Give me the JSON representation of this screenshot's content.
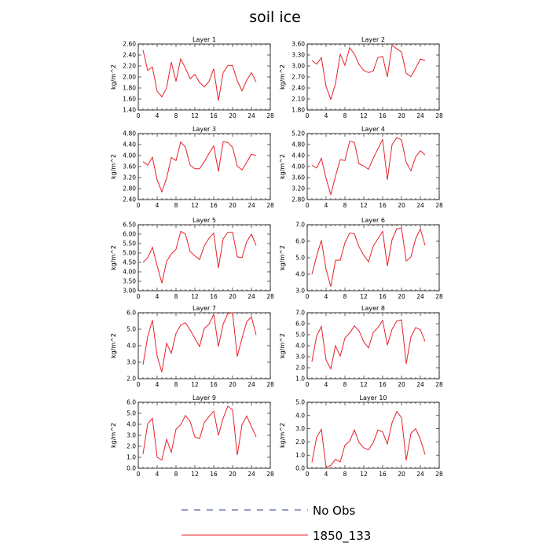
{
  "title": "soil ice",
  "legend": [
    {
      "label": "No Obs",
      "color": "#2b3b8f",
      "style": "dashed"
    },
    {
      "label": "1850_133",
      "color": "#e8202a",
      "style": "solid"
    }
  ],
  "chart_data": [
    {
      "type": "line",
      "title": "Layer 1",
      "ylabel": "kg/m^2",
      "xlim": [
        0,
        28
      ],
      "xticks": [
        0,
        4,
        8,
        12,
        16,
        20,
        24,
        28
      ],
      "ylim": [
        1.4,
        2.6
      ],
      "yticks": [
        "1.40",
        "1.60",
        "1.80",
        "2.00",
        "2.20",
        "2.40",
        "2.60"
      ],
      "series": [
        {
          "x": [
            1,
            2,
            3,
            4,
            5,
            6,
            7,
            8,
            9,
            10,
            11,
            12,
            13,
            14,
            15,
            16,
            17,
            18,
            19,
            20,
            21,
            22,
            23,
            24,
            25
          ],
          "y": [
            2.49,
            2.12,
            2.18,
            1.74,
            1.64,
            1.8,
            2.27,
            1.92,
            2.33,
            2.16,
            1.97,
            2.05,
            1.9,
            1.82,
            1.92,
            2.15,
            1.57,
            2.08,
            2.21,
            2.21,
            1.93,
            1.75,
            1.94,
            2.08,
            1.91
          ]
        }
      ]
    },
    {
      "type": "line",
      "title": "Layer 2",
      "ylabel": "kg/m^2",
      "xlim": [
        0,
        28
      ],
      "xticks": [
        0,
        4,
        8,
        12,
        16,
        20,
        24,
        28
      ],
      "ylim": [
        1.8,
        3.6
      ],
      "yticks": [
        "1.80",
        "2.10",
        "2.40",
        "2.70",
        "3.00",
        "3.30",
        "3.60"
      ],
      "series": [
        {
          "x": [
            1,
            2,
            3,
            4,
            5,
            6,
            7,
            8,
            9,
            10,
            11,
            12,
            13,
            14,
            15,
            16,
            17,
            18,
            19,
            20,
            21,
            22,
            23,
            24,
            25
          ],
          "y": [
            3.15,
            3.05,
            3.23,
            2.44,
            2.09,
            2.52,
            3.32,
            3.02,
            3.5,
            3.33,
            3.04,
            2.88,
            2.82,
            2.86,
            3.23,
            3.26,
            2.7,
            3.57,
            3.47,
            3.38,
            2.8,
            2.71,
            2.94,
            3.19,
            3.15
          ]
        }
      ]
    },
    {
      "type": "line",
      "title": "Layer 3",
      "ylabel": "kg/m^2",
      "xlim": [
        0,
        28
      ],
      "xticks": [
        0,
        4,
        8,
        12,
        16,
        20,
        24,
        28
      ],
      "ylim": [
        2.4,
        4.8
      ],
      "yticks": [
        "2.40",
        "2.80",
        "3.20",
        "3.60",
        "4.00",
        "4.40",
        "4.80"
      ],
      "series": [
        {
          "x": [
            1,
            2,
            3,
            4,
            5,
            6,
            7,
            8,
            9,
            10,
            11,
            12,
            13,
            14,
            15,
            16,
            17,
            18,
            19,
            20,
            21,
            22,
            23,
            24,
            25
          ],
          "y": [
            3.78,
            3.65,
            3.94,
            3.12,
            2.68,
            3.17,
            3.93,
            3.82,
            4.5,
            4.3,
            3.65,
            3.52,
            3.52,
            3.78,
            4.08,
            4.35,
            3.42,
            4.5,
            4.48,
            4.3,
            3.62,
            3.48,
            3.75,
            4.05,
            4.0
          ]
        }
      ]
    },
    {
      "type": "line",
      "title": "Layer 4",
      "ylabel": "kg/m^2",
      "xlim": [
        0,
        28
      ],
      "xticks": [
        0,
        4,
        8,
        12,
        16,
        20,
        24,
        28
      ],
      "ylim": [
        2.8,
        5.2
      ],
      "yticks": [
        "2.80",
        "3.20",
        "3.60",
        "4.00",
        "4.40",
        "4.80",
        "5.20"
      ],
      "series": [
        {
          "x": [
            1,
            2,
            3,
            4,
            5,
            6,
            7,
            8,
            9,
            10,
            11,
            12,
            13,
            14,
            15,
            16,
            17,
            18,
            19,
            20,
            21,
            22,
            23,
            24,
            25
          ],
          "y": [
            4.05,
            3.95,
            4.3,
            3.57,
            2.98,
            3.65,
            4.25,
            4.22,
            4.92,
            4.88,
            4.1,
            4.02,
            3.9,
            4.3,
            4.65,
            4.98,
            3.52,
            4.8,
            5.05,
            4.98,
            4.15,
            3.85,
            4.35,
            4.58,
            4.42
          ]
        }
      ]
    },
    {
      "type": "line",
      "title": "Layer 5",
      "ylabel": "kg/m^2",
      "xlim": [
        0,
        28
      ],
      "xticks": [
        0,
        4,
        8,
        12,
        16,
        20,
        24,
        28
      ],
      "ylim": [
        3.0,
        6.5
      ],
      "yticks": [
        "3.00",
        "3.50",
        "4.00",
        "4.50",
        "5.00",
        "5.50",
        "6.00",
        "6.50"
      ],
      "series": [
        {
          "x": [
            1,
            2,
            3,
            4,
            5,
            6,
            7,
            8,
            9,
            10,
            11,
            12,
            13,
            14,
            15,
            16,
            17,
            18,
            19,
            20,
            21,
            22,
            23,
            24,
            25
          ],
          "y": [
            4.5,
            4.75,
            5.3,
            4.33,
            3.4,
            4.55,
            4.95,
            5.2,
            6.15,
            6.0,
            5.08,
            4.85,
            4.65,
            5.38,
            5.78,
            6.05,
            4.2,
            5.75,
            6.1,
            6.1,
            4.8,
            4.75,
            5.6,
            6.0,
            5.4
          ]
        }
      ]
    },
    {
      "type": "line",
      "title": "Layer 6",
      "ylabel": "kg/m^2",
      "xlim": [
        0,
        28
      ],
      "xticks": [
        0,
        4,
        8,
        12,
        16,
        20,
        24,
        28
      ],
      "ylim": [
        3.0,
        7.0
      ],
      "yticks": [
        "3.0",
        "4.0",
        "5.0",
        "6.0",
        "7.0"
      ],
      "series": [
        {
          "x": [
            1,
            2,
            3,
            4,
            5,
            6,
            7,
            8,
            9,
            10,
            11,
            12,
            13,
            14,
            15,
            16,
            17,
            18,
            19,
            20,
            21,
            22,
            23,
            24,
            25
          ],
          "y": [
            4.0,
            5.1,
            6.05,
            4.3,
            3.25,
            4.85,
            4.85,
            5.9,
            6.5,
            6.45,
            5.65,
            5.15,
            4.75,
            5.7,
            6.15,
            6.6,
            4.5,
            6.1,
            6.75,
            6.8,
            4.8,
            5.05,
            6.15,
            6.75,
            5.75
          ]
        }
      ]
    },
    {
      "type": "line",
      "title": "Layer 7",
      "ylabel": "kg/m^2",
      "xlim": [
        0,
        28
      ],
      "xticks": [
        0,
        4,
        8,
        12,
        16,
        20,
        24,
        28
      ],
      "ylim": [
        2.0,
        6.0
      ],
      "yticks": [
        "2.0",
        "3.0",
        "4.0",
        "5.0",
        "6.0"
      ],
      "series": [
        {
          "x": [
            1,
            2,
            3,
            4,
            5,
            6,
            7,
            8,
            9,
            10,
            11,
            12,
            13,
            14,
            15,
            16,
            17,
            18,
            19,
            20,
            21,
            22,
            23,
            24,
            25
          ],
          "y": [
            2.85,
            4.55,
            5.55,
            3.38,
            2.4,
            4.15,
            3.55,
            4.75,
            5.25,
            5.4,
            4.95,
            4.45,
            3.95,
            5.05,
            5.3,
            5.9,
            3.95,
            5.3,
            5.95,
            6.0,
            3.35,
            4.45,
            5.45,
            5.75,
            4.65
          ]
        }
      ]
    },
    {
      "type": "line",
      "title": "Layer 8",
      "ylabel": "kg/m^2",
      "xlim": [
        0,
        28
      ],
      "xticks": [
        0,
        4,
        8,
        12,
        16,
        20,
        24,
        28
      ],
      "ylim": [
        1.0,
        7.0
      ],
      "yticks": [
        "1.0",
        "2.0",
        "3.0",
        "4.0",
        "5.0",
        "6.0",
        "7.0"
      ],
      "series": [
        {
          "x": [
            1,
            2,
            3,
            4,
            5,
            6,
            7,
            8,
            9,
            10,
            11,
            12,
            13,
            14,
            15,
            16,
            17,
            18,
            19,
            20,
            21,
            22,
            23,
            24,
            25
          ],
          "y": [
            2.55,
            4.9,
            5.75,
            2.7,
            1.9,
            4.0,
            3.05,
            4.7,
            5.15,
            5.8,
            5.35,
            4.35,
            3.8,
            5.2,
            5.65,
            6.3,
            4.05,
            5.5,
            6.25,
            6.35,
            2.35,
            4.8,
            5.65,
            5.45,
            4.4
          ]
        }
      ]
    },
    {
      "type": "line",
      "title": "Layer 9",
      "ylabel": "kg/m^2",
      "xlim": [
        0,
        28
      ],
      "xticks": [
        0,
        4,
        8,
        12,
        16,
        20,
        24,
        28
      ],
      "ylim": [
        0.0,
        6.0
      ],
      "yticks": [
        "0.0",
        "1.0",
        "2.0",
        "3.0",
        "4.0",
        "5.0",
        "6.0"
      ],
      "series": [
        {
          "x": [
            1,
            2,
            3,
            4,
            5,
            6,
            7,
            8,
            9,
            10,
            11,
            12,
            13,
            14,
            15,
            16,
            17,
            18,
            19,
            20,
            21,
            22,
            23,
            24,
            25
          ],
          "y": [
            1.3,
            4.05,
            4.55,
            1.0,
            0.75,
            2.65,
            1.45,
            3.55,
            3.95,
            4.8,
            4.25,
            2.85,
            2.7,
            4.15,
            4.7,
            5.2,
            3.0,
            4.55,
            5.65,
            5.3,
            1.2,
            3.95,
            4.75,
            3.8,
            2.85
          ]
        }
      ]
    },
    {
      "type": "line",
      "title": "Layer 10",
      "ylabel": "kg/m^2",
      "xlim": [
        0,
        28
      ],
      "xticks": [
        0,
        4,
        8,
        12,
        16,
        20,
        24,
        28
      ],
      "ylim": [
        0.0,
        5.0
      ],
      "yticks": [
        "0.0",
        "1.0",
        "2.0",
        "3.0",
        "4.0",
        "5.0"
      ],
      "series": [
        {
          "x": [
            1,
            2,
            3,
            4,
            5,
            6,
            7,
            8,
            9,
            10,
            11,
            12,
            13,
            14,
            15,
            16,
            17,
            18,
            19,
            20,
            21,
            22,
            23,
            24,
            25
          ],
          "y": [
            0.45,
            2.35,
            2.95,
            0.08,
            0.22,
            0.68,
            0.48,
            1.75,
            2.05,
            2.9,
            1.95,
            1.55,
            1.4,
            1.95,
            2.9,
            2.75,
            1.85,
            3.45,
            4.3,
            3.85,
            0.6,
            2.65,
            3.0,
            2.2,
            1.05
          ]
        }
      ]
    }
  ]
}
